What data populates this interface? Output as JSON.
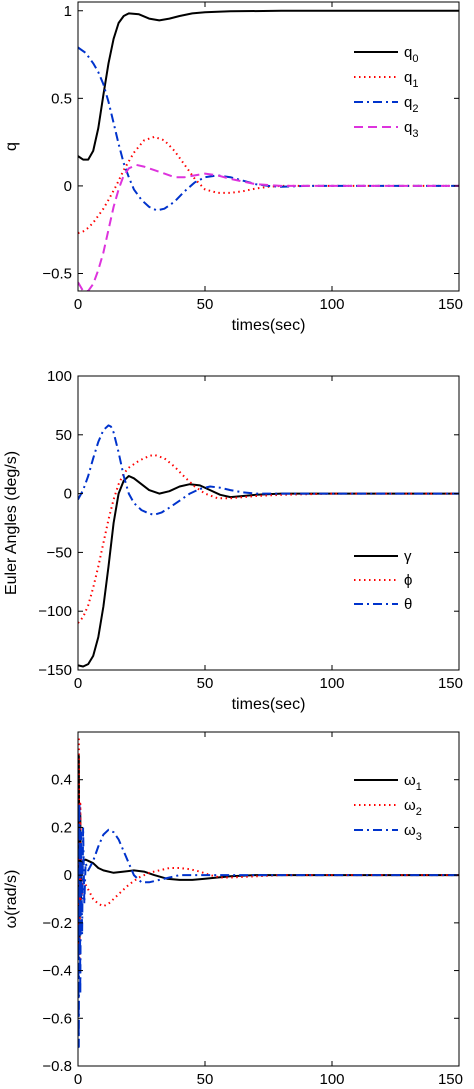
{
  "chart_data": [
    {
      "type": "line",
      "xlabel": "times(sec)",
      "ylabel": "q",
      "xlim": [
        0,
        150
      ],
      "ylim": [
        -0.6,
        1.05
      ],
      "xticks": [
        0,
        50,
        100,
        150
      ],
      "yticks": [
        -0.5,
        0,
        0.5,
        1
      ],
      "ytick_labels": [
        "−0.5",
        "0",
        "0.5",
        "1"
      ],
      "legend_position": "top-right",
      "series": [
        {
          "name": "q",
          "sub": "0",
          "color": "#000000",
          "style": "solid",
          "x": [
            0,
            2,
            4,
            6,
            8,
            10,
            12,
            14,
            16,
            18,
            20,
            24,
            28,
            32,
            36,
            40,
            45,
            50,
            60,
            80,
            100,
            150
          ],
          "y": [
            0.17,
            0.15,
            0.15,
            0.2,
            0.33,
            0.52,
            0.7,
            0.84,
            0.93,
            0.97,
            0.985,
            0.98,
            0.955,
            0.945,
            0.955,
            0.97,
            0.985,
            0.992,
            0.997,
            1.0,
            1.0,
            1.0
          ]
        },
        {
          "name": "q",
          "sub": "1",
          "color": "#ff0000",
          "style": "dotted",
          "x": [
            0,
            2,
            4,
            6,
            8,
            10,
            12,
            15,
            18,
            22,
            26,
            30,
            34,
            38,
            42,
            46,
            50,
            55,
            60,
            65,
            70,
            75,
            80,
            90,
            100,
            150
          ],
          "y": [
            -0.27,
            -0.26,
            -0.24,
            -0.21,
            -0.17,
            -0.13,
            -0.08,
            0.0,
            0.09,
            0.19,
            0.26,
            0.28,
            0.26,
            0.2,
            0.12,
            0.04,
            -0.02,
            -0.04,
            -0.04,
            -0.03,
            -0.015,
            -0.005,
            0.0,
            0.0,
            0.0,
            0.0
          ]
        },
        {
          "name": "q",
          "sub": "2",
          "color": "#0033cc",
          "style": "dashdot",
          "x": [
            0,
            3,
            6,
            8,
            10,
            12,
            14,
            16,
            18,
            20,
            22,
            25,
            28,
            31,
            34,
            38,
            42,
            46,
            50,
            55,
            60,
            65,
            70,
            75,
            80,
            90,
            100,
            150
          ],
          "y": [
            0.79,
            0.76,
            0.7,
            0.65,
            0.58,
            0.48,
            0.36,
            0.24,
            0.13,
            0.05,
            -0.02,
            -0.08,
            -0.12,
            -0.14,
            -0.13,
            -0.09,
            -0.03,
            0.02,
            0.05,
            0.06,
            0.05,
            0.03,
            0.01,
            0.0,
            -0.005,
            0.0,
            0.0,
            0.0
          ]
        },
        {
          "name": "q",
          "sub": "3",
          "color": "#dd33dd",
          "style": "dashed",
          "x": [
            0,
            2,
            4,
            6,
            8,
            10,
            12,
            14,
            16,
            18,
            20,
            23,
            26,
            30,
            34,
            38,
            42,
            46,
            50,
            55,
            60,
            70,
            80,
            100,
            150
          ],
          "y": [
            -0.55,
            -0.6,
            -0.6,
            -0.56,
            -0.48,
            -0.38,
            -0.25,
            -0.12,
            -0.02,
            0.06,
            0.1,
            0.12,
            0.11,
            0.09,
            0.07,
            0.05,
            0.05,
            0.06,
            0.07,
            0.06,
            0.04,
            0.01,
            0.0,
            0.0,
            0.0
          ]
        }
      ]
    },
    {
      "type": "line",
      "xlabel": "times(sec)",
      "ylabel": "Euler Angles (deg/s)",
      "xlim": [
        0,
        150
      ],
      "ylim": [
        -150,
        100
      ],
      "xticks": [
        0,
        50,
        100,
        150
      ],
      "yticks": [
        -150,
        -100,
        -50,
        0,
        50,
        100
      ],
      "ytick_labels": [
        "−150",
        "−100",
        "−50",
        "0",
        "50",
        "100"
      ],
      "legend_position": "lower-right",
      "series": [
        {
          "name": "γ",
          "sub": "",
          "color": "#000000",
          "style": "solid",
          "x": [
            0,
            2,
            4,
            6,
            8,
            10,
            12,
            14,
            16,
            18,
            20,
            22,
            25,
            28,
            32,
            36,
            40,
            44,
            48,
            52,
            56,
            60,
            65,
            70,
            80,
            100,
            150
          ],
          "y": [
            -146,
            -147,
            -145,
            -138,
            -122,
            -96,
            -62,
            -25,
            0,
            11,
            15,
            13,
            8,
            3,
            0,
            2,
            6,
            8,
            7,
            3,
            -1,
            -3,
            -2,
            -1,
            0,
            0,
            0
          ]
        },
        {
          "name": "ϕ",
          "sub": "",
          "color": "#ff0000",
          "style": "dotted",
          "x": [
            0,
            2,
            4,
            6,
            8,
            10,
            12,
            14,
            16,
            18,
            20,
            24,
            28,
            30,
            34,
            38,
            42,
            46,
            50,
            55,
            60,
            65,
            70,
            80,
            100,
            150
          ],
          "y": [
            -110,
            -105,
            -95,
            -80,
            -62,
            -42,
            -22,
            -5,
            8,
            17,
            22,
            28,
            32,
            33,
            30,
            23,
            14,
            6,
            0,
            -4,
            -4,
            -3,
            -2,
            -1,
            0,
            0
          ]
        },
        {
          "name": "θ",
          "sub": "",
          "color": "#0033cc",
          "style": "dashdot",
          "x": [
            0,
            2,
            4,
            6,
            8,
            10,
            12,
            13,
            14,
            16,
            18,
            20,
            22,
            25,
            28,
            30,
            33,
            36,
            40,
            44,
            48,
            52,
            56,
            60,
            65,
            70,
            80,
            100,
            150
          ],
          "y": [
            -5,
            3,
            15,
            30,
            44,
            54,
            58,
            57,
            52,
            35,
            15,
            0,
            -8,
            -14,
            -17,
            -18,
            -16,
            -12,
            -6,
            0,
            4,
            6,
            5,
            3,
            1,
            0,
            0,
            0,
            0
          ]
        }
      ]
    },
    {
      "type": "line",
      "xlabel": "times(sec)",
      "ylabel": "ω(rad/s)",
      "xlim": [
        0,
        150
      ],
      "ylim": [
        -0.8,
        0.6
      ],
      "xticks": [
        0,
        50,
        100,
        150
      ],
      "yticks": [
        -0.8,
        -0.6,
        -0.4,
        -0.2,
        0,
        0.2,
        0.4
      ],
      "ytick_labels": [
        "−0.8",
        "−0.6",
        "−0.4",
        "−0.2",
        "0",
        "0.2",
        "0.4"
      ],
      "legend_position": "top-right",
      "series": [
        {
          "name": "ω",
          "sub": "1",
          "color": "#000000",
          "style": "solid",
          "x": [
            0,
            0.3,
            0.6,
            0.9,
            1.2,
            1.5,
            2,
            3,
            4,
            6,
            8,
            10,
            14,
            18,
            22,
            26,
            30,
            35,
            40,
            45,
            50,
            55,
            60,
            70,
            80,
            100,
            150
          ],
          "y": [
            0.0,
            0.5,
            -0.3,
            0.25,
            -0.1,
            0.05,
            0.06,
            0.065,
            0.06,
            0.05,
            0.03,
            0.02,
            0.01,
            0.015,
            0.02,
            0.015,
            0.0,
            -0.015,
            -0.02,
            -0.02,
            -0.015,
            -0.01,
            -0.005,
            0.0,
            0.0,
            0.0,
            0.0
          ]
        },
        {
          "name": "ω",
          "sub": "2",
          "color": "#ff0000",
          "style": "dotted",
          "x": [
            0,
            0.3,
            0.6,
            0.9,
            1.3,
            2,
            4,
            6,
            8,
            10,
            12,
            14,
            16,
            20,
            24,
            28,
            32,
            36,
            40,
            44,
            48,
            52,
            56,
            60,
            70,
            80,
            100,
            150
          ],
          "y": [
            0.0,
            0.58,
            -0.35,
            0.3,
            -0.1,
            -0.02,
            -0.06,
            -0.1,
            -0.12,
            -0.13,
            -0.12,
            -0.1,
            -0.08,
            -0.04,
            -0.01,
            0.01,
            0.02,
            0.03,
            0.03,
            0.025,
            0.015,
            0.0,
            -0.01,
            -0.01,
            -0.005,
            0.0,
            0.0,
            0.0
          ]
        },
        {
          "name": "ω",
          "sub": "3",
          "color": "#0033cc",
          "style": "dashdot",
          "x": [
            0,
            0.3,
            0.6,
            0.9,
            1.2,
            1.6,
            2,
            2.5,
            3,
            4,
            6,
            8,
            10,
            12,
            14,
            16,
            18,
            20,
            22,
            25,
            28,
            32,
            36,
            40,
            50,
            60,
            80,
            100,
            150
          ],
          "y": [
            0.0,
            -0.72,
            0.3,
            -0.5,
            0.18,
            -0.25,
            0.2,
            -0.12,
            0.05,
            0.02,
            0.06,
            0.12,
            0.17,
            0.19,
            0.18,
            0.15,
            0.1,
            0.05,
            0.0,
            -0.03,
            -0.03,
            -0.02,
            -0.01,
            0.0,
            0.0,
            0.0,
            0.0,
            0.0,
            0.0
          ]
        }
      ]
    }
  ]
}
